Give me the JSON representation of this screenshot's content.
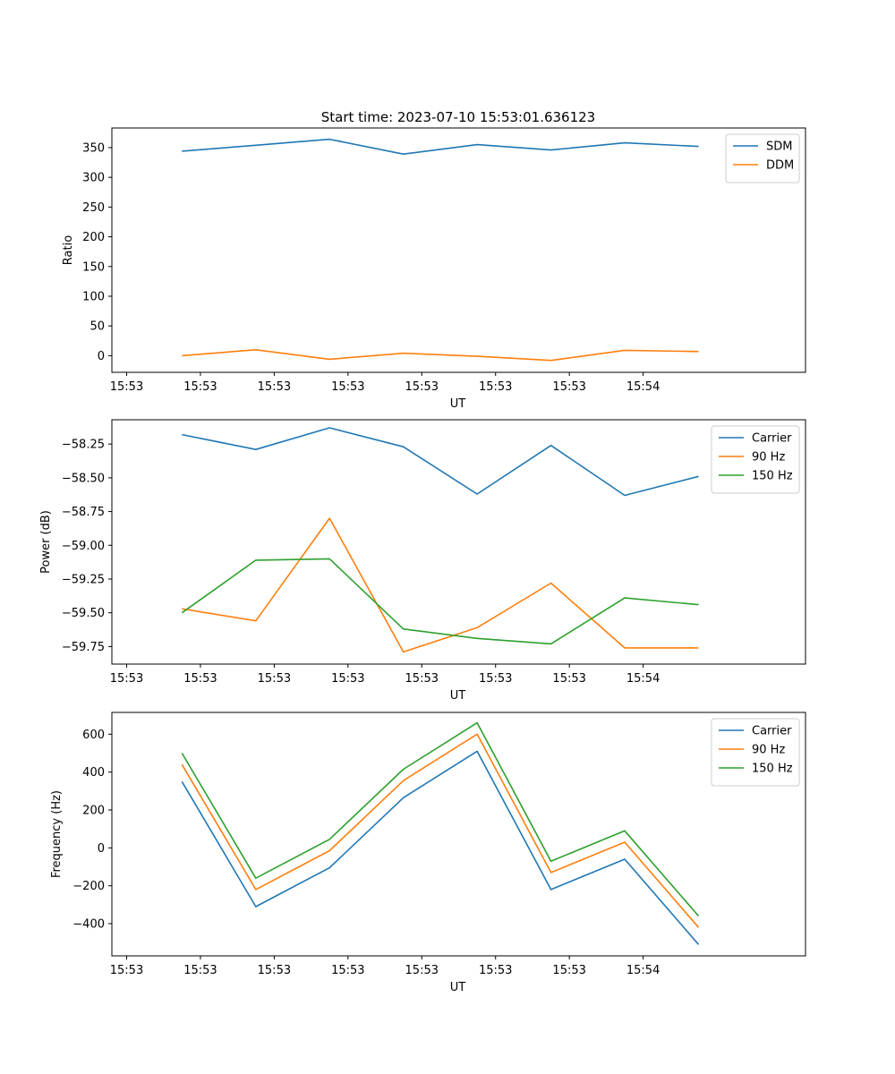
{
  "figure": {
    "title": "Start time: 2023-07-10 15:53:01.636123"
  },
  "chart_data": [
    {
      "type": "line",
      "title": "Start time: 2023-07-10 15:53:01.636123",
      "xlabel": "UT",
      "ylabel": "Ratio",
      "x_tick_labels": [
        "15:53",
        "15:53",
        "15:53",
        "15:53",
        "15:53",
        "15:53",
        "15:53"
      ],
      "x_last_tick_label": "15:54",
      "xlim": [
        -0.2,
        9.2
      ],
      "x": [
        0.75,
        1.75,
        2.75,
        3.75,
        4.75,
        5.75,
        6.75,
        7.75
      ],
      "ylim": [
        -28,
        383
      ],
      "yticks": [
        0,
        50,
        100,
        150,
        200,
        250,
        300,
        350
      ],
      "legend": "top-right",
      "series": [
        {
          "name": "SDM",
          "color": "#1f77b4",
          "values": [
            344,
            354,
            364,
            339,
            355,
            346,
            358,
            352
          ]
        },
        {
          "name": "DDM",
          "color": "#ff7f0e",
          "values": [
            0,
            10,
            -6,
            4,
            -1,
            -8,
            9,
            7
          ]
        }
      ]
    },
    {
      "type": "line",
      "title": "",
      "xlabel": "UT",
      "ylabel": "Power (dB)",
      "x_tick_labels": [
        "15:53",
        "15:53",
        "15:53",
        "15:53",
        "15:53",
        "15:53",
        "15:53"
      ],
      "x_last_tick_label": "15:54",
      "xlim": [
        -0.2,
        9.2
      ],
      "x": [
        0.75,
        1.75,
        2.75,
        3.75,
        4.75,
        5.75,
        6.75,
        7.75
      ],
      "ylim": [
        -59.88,
        -58.07
      ],
      "yticks": [
        -59.75,
        -59.5,
        -59.25,
        -59.0,
        -58.75,
        -58.5,
        -58.25
      ],
      "ytick_labels": [
        "−59.75",
        "−59.50",
        "−59.25",
        "−59.00",
        "−58.75",
        "−58.50",
        "−58.25"
      ],
      "legend": "top-right",
      "series": [
        {
          "name": "Carrier",
          "color": "#1f77b4",
          "values": [
            -58.18,
            -58.29,
            -58.13,
            -58.27,
            -58.62,
            -58.26,
            -58.63,
            -58.49
          ]
        },
        {
          "name": "90 Hz",
          "color": "#ff7f0e",
          "values": [
            -59.47,
            -59.56,
            -58.8,
            -59.79,
            -59.61,
            -59.28,
            -59.76,
            -59.76
          ]
        },
        {
          "name": "150 Hz",
          "color": "#2ca02c",
          "values": [
            -59.5,
            -59.11,
            -59.1,
            -59.62,
            -59.69,
            -59.73,
            -59.39,
            -59.44
          ]
        }
      ]
    },
    {
      "type": "line",
      "title": "",
      "xlabel": "UT",
      "ylabel": "Frequency (Hz)",
      "x_tick_labels": [
        "15:53",
        "15:53",
        "15:53",
        "15:53",
        "15:53",
        "15:53",
        "15:53"
      ],
      "x_last_tick_label": "15:54",
      "xlim": [
        -0.2,
        9.2
      ],
      "x": [
        0.75,
        1.75,
        2.75,
        3.75,
        4.75,
        5.75,
        6.75,
        7.75
      ],
      "ylim": [
        -570,
        715
      ],
      "yticks": [
        -400,
        -200,
        0,
        200,
        400,
        600
      ],
      "ytick_labels": [
        "−400",
        "−200",
        "0",
        "200",
        "400",
        "600"
      ],
      "legend": "top-right",
      "series": [
        {
          "name": "Carrier",
          "color": "#1f77b4",
          "values": [
            350,
            -310,
            -105,
            265,
            510,
            -220,
            -60,
            -510
          ]
        },
        {
          "name": "90 Hz",
          "color": "#ff7f0e",
          "values": [
            440,
            -220,
            -15,
            355,
            600,
            -130,
            30,
            -420
          ]
        },
        {
          "name": "150 Hz",
          "color": "#2ca02c",
          "values": [
            500,
            -160,
            45,
            415,
            660,
            -70,
            90,
            -360
          ]
        }
      ]
    }
  ]
}
